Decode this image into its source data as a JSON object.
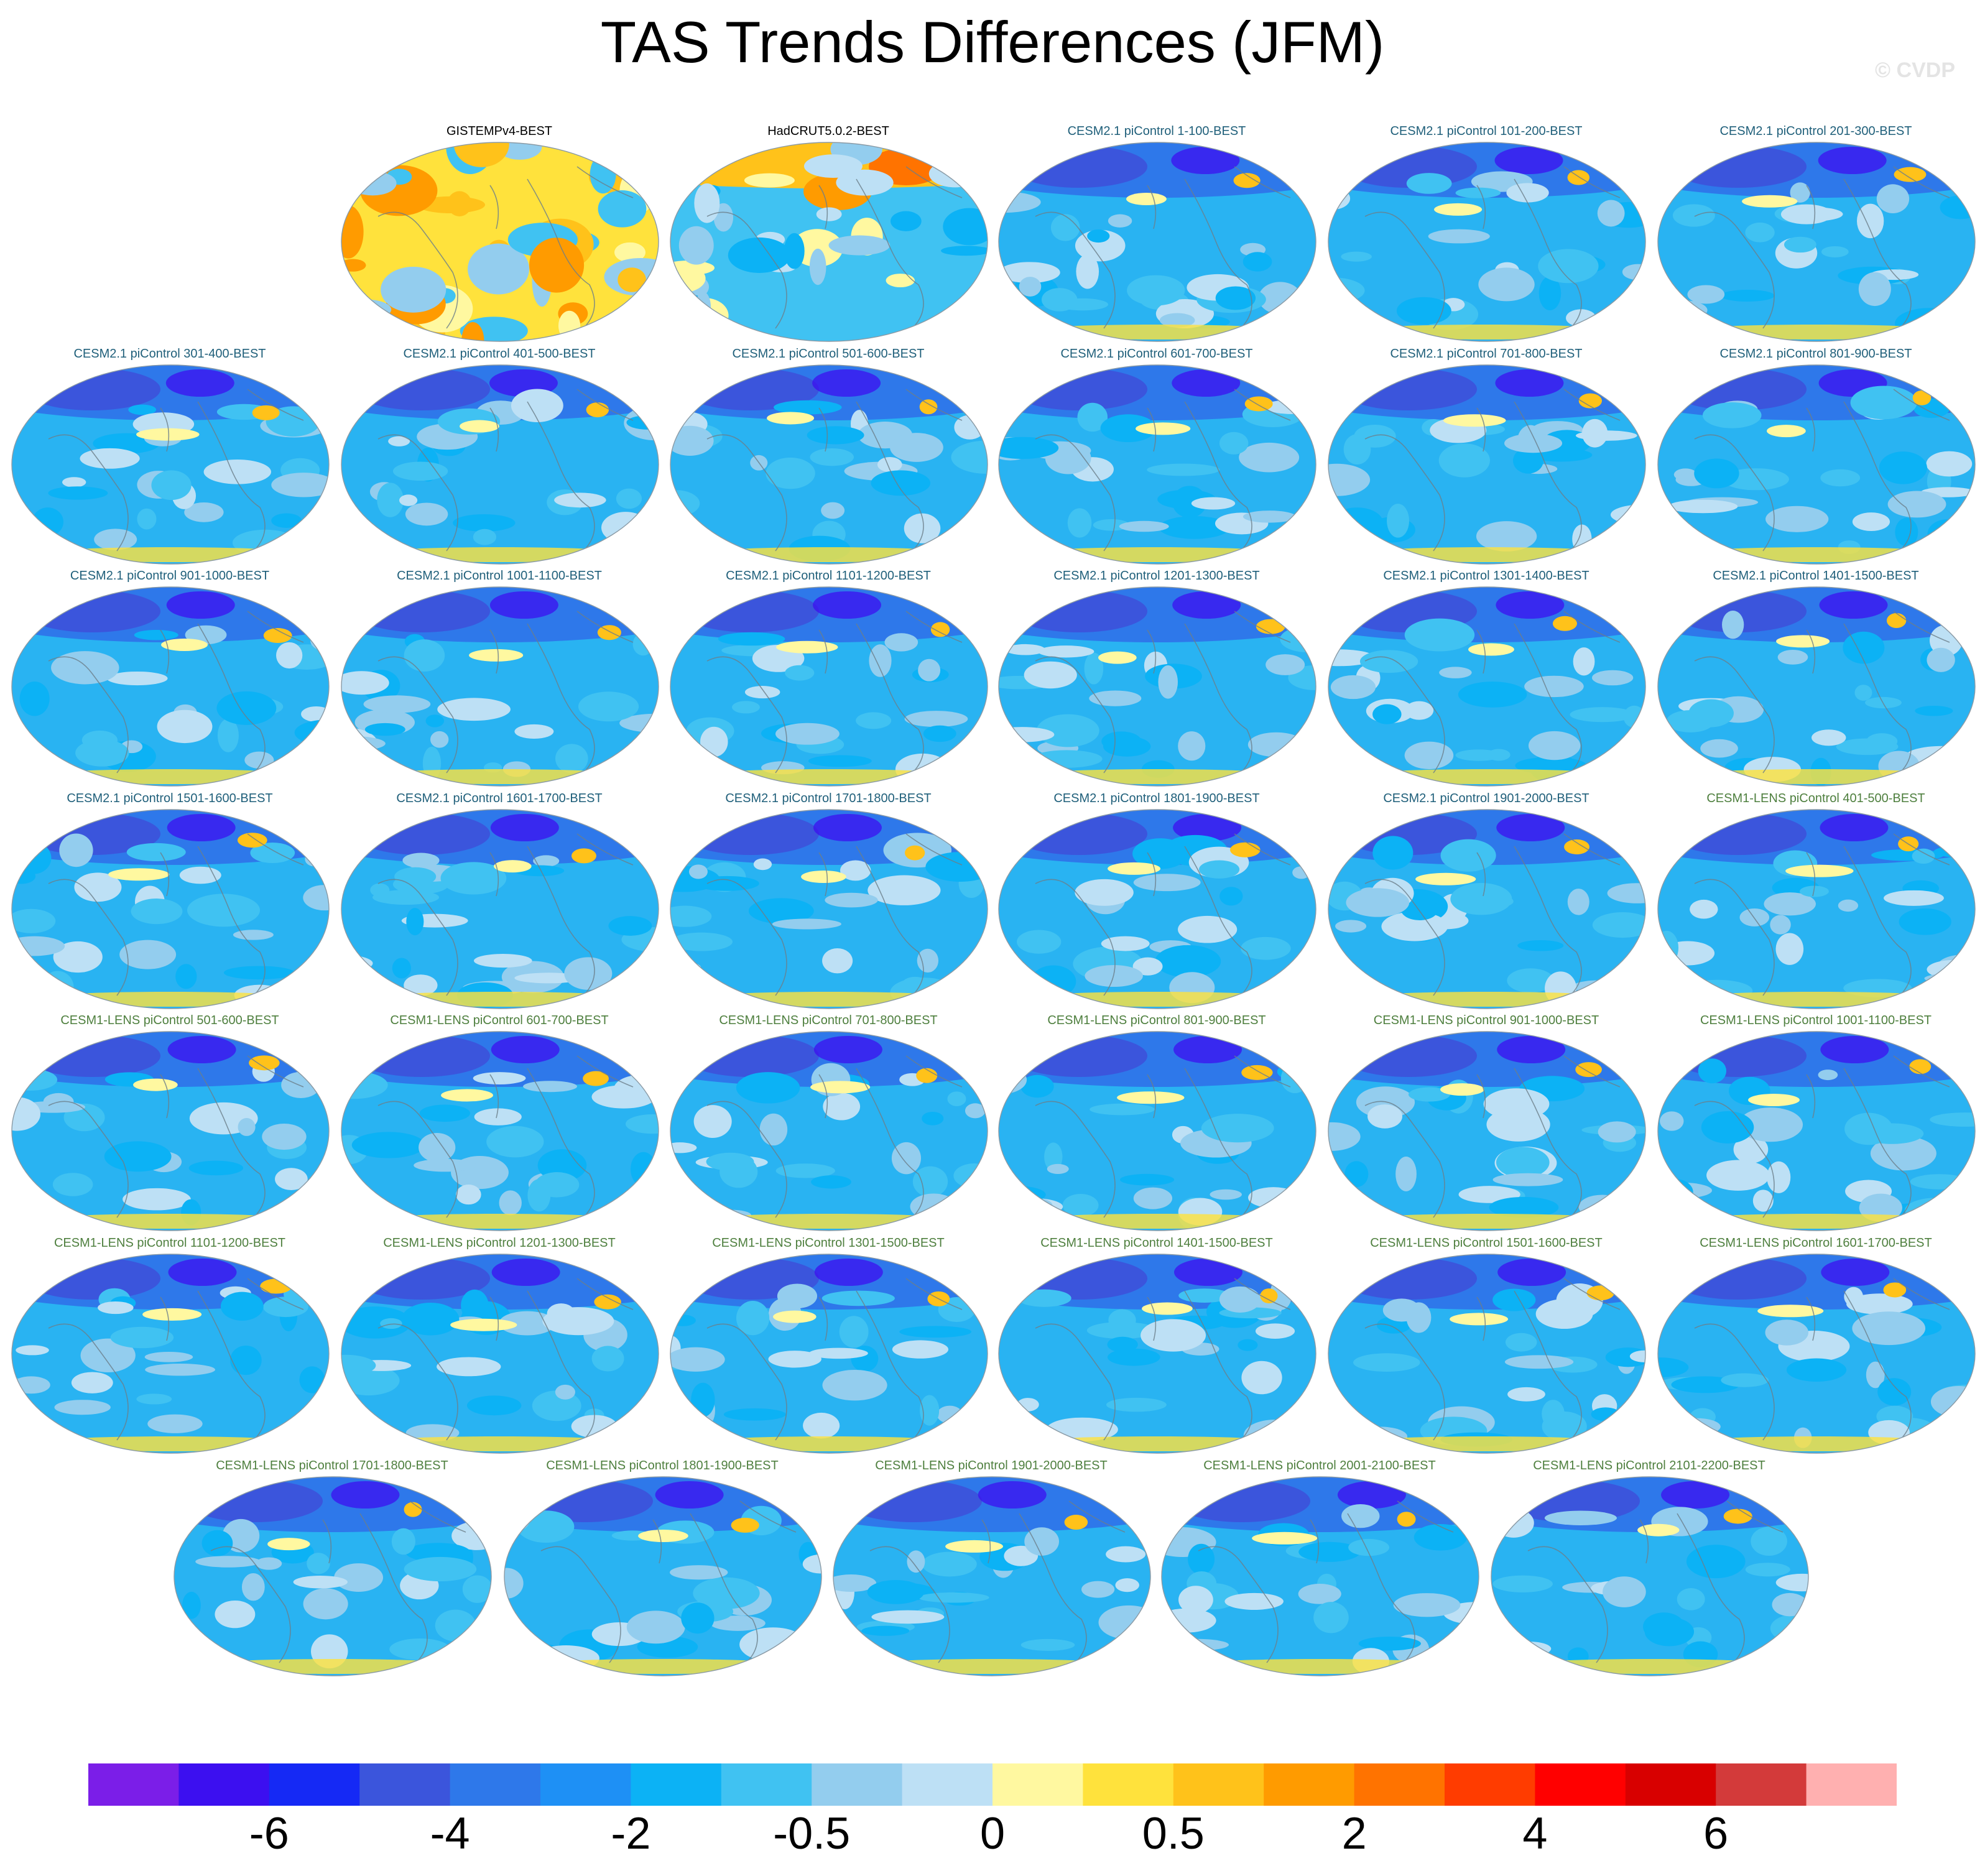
{
  "title": "TAS Trends Differences (JFM)",
  "watermark": "© CVDP",
  "colors": {
    "obs_title": "#000000",
    "cesm2_title": "#1f5f7a",
    "lens_title": "#4e7f3e",
    "ocean": "#29b3f2",
    "land_outline": "#6b7e8a"
  },
  "panels": [
    {
      "title": "GISTEMPv4-BEST",
      "group": "obs",
      "style": "warm"
    },
    {
      "title": "HadCRUT5.0.2-BEST",
      "group": "obs",
      "style": "mixed"
    },
    {
      "title": "CESM2.1 piControl 1-100-BEST",
      "group": "cesm2",
      "style": "cool"
    },
    {
      "title": "CESM2.1 piControl 101-200-BEST",
      "group": "cesm2",
      "style": "cool"
    },
    {
      "title": "CESM2.1 piControl 201-300-BEST",
      "group": "cesm2",
      "style": "cool"
    },
    {
      "title": "CESM2.1 piControl 301-400-BEST",
      "group": "cesm2",
      "style": "cool"
    },
    {
      "title": "CESM2.1 piControl 401-500-BEST",
      "group": "cesm2",
      "style": "cool"
    },
    {
      "title": "CESM2.1 piControl 501-600-BEST",
      "group": "cesm2",
      "style": "cool"
    },
    {
      "title": "CESM2.1 piControl 601-700-BEST",
      "group": "cesm2",
      "style": "cool"
    },
    {
      "title": "CESM2.1 piControl 701-800-BEST",
      "group": "cesm2",
      "style": "cool"
    },
    {
      "title": "CESM2.1 piControl 801-900-BEST",
      "group": "cesm2",
      "style": "cool"
    },
    {
      "title": "CESM2.1 piControl 901-1000-BEST",
      "group": "cesm2",
      "style": "cool"
    },
    {
      "title": "CESM2.1 piControl 1001-1100-BEST",
      "group": "cesm2",
      "style": "cool"
    },
    {
      "title": "CESM2.1 piControl 1101-1200-BEST",
      "group": "cesm2",
      "style": "cool"
    },
    {
      "title": "CESM2.1 piControl 1201-1300-BEST",
      "group": "cesm2",
      "style": "cool"
    },
    {
      "title": "CESM2.1 piControl 1301-1400-BEST",
      "group": "cesm2",
      "style": "cool"
    },
    {
      "title": "CESM2.1 piControl 1401-1500-BEST",
      "group": "cesm2",
      "style": "cool"
    },
    {
      "title": "CESM2.1 piControl 1501-1600-BEST",
      "group": "cesm2",
      "style": "cool"
    },
    {
      "title": "CESM2.1 piControl 1601-1700-BEST",
      "group": "cesm2",
      "style": "cool"
    },
    {
      "title": "CESM2.1 piControl 1701-1800-BEST",
      "group": "cesm2",
      "style": "cool"
    },
    {
      "title": "CESM2.1 piControl 1801-1900-BEST",
      "group": "cesm2",
      "style": "cool"
    },
    {
      "title": "CESM2.1 piControl 1901-2000-BEST",
      "group": "cesm2",
      "style": "cool"
    },
    {
      "title": "CESM1-LENS piControl 401-500-BEST",
      "group": "lens",
      "style": "cool"
    },
    {
      "title": "CESM1-LENS piControl 501-600-BEST",
      "group": "lens",
      "style": "cool"
    },
    {
      "title": "CESM1-LENS piControl 601-700-BEST",
      "group": "lens",
      "style": "cool"
    },
    {
      "title": "CESM1-LENS piControl 701-800-BEST",
      "group": "lens",
      "style": "cool"
    },
    {
      "title": "CESM1-LENS piControl 801-900-BEST",
      "group": "lens",
      "style": "cool"
    },
    {
      "title": "CESM1-LENS piControl 901-1000-BEST",
      "group": "lens",
      "style": "cool"
    },
    {
      "title": "CESM1-LENS piControl 1001-1100-BEST",
      "group": "lens",
      "style": "cool"
    },
    {
      "title": "CESM1-LENS piControl 1101-1200-BEST",
      "group": "lens",
      "style": "cool"
    },
    {
      "title": "CESM1-LENS piControl 1201-1300-BEST",
      "group": "lens",
      "style": "cool"
    },
    {
      "title": "CESM1-LENS piControl 1301-1500-BEST",
      "group": "lens",
      "style": "cool"
    },
    {
      "title": "CESM1-LENS piControl 1401-1500-BEST",
      "group": "lens",
      "style": "cool"
    },
    {
      "title": "CESM1-LENS piControl 1501-1600-BEST",
      "group": "lens",
      "style": "cool"
    },
    {
      "title": "CESM1-LENS piControl 1601-1700-BEST",
      "group": "lens",
      "style": "cool"
    },
    {
      "title": "CESM1-LENS piControl 1701-1800-BEST",
      "group": "lens",
      "style": "cool"
    },
    {
      "title": "CESM1-LENS piControl 1801-1900-BEST",
      "group": "lens",
      "style": "cool"
    },
    {
      "title": "CESM1-LENS piControl 1901-2000-BEST",
      "group": "lens",
      "style": "cool"
    },
    {
      "title": "CESM1-LENS piControl 2001-2100-BEST",
      "group": "lens",
      "style": "cool"
    },
    {
      "title": "CESM1-LENS piControl 2101-2200-BEST",
      "group": "lens",
      "style": "cool"
    }
  ],
  "colorbar": {
    "colors": [
      "#7b1ee8",
      "#3c0ff0",
      "#1529f5",
      "#3b55dc",
      "#2e78ea",
      "#1e90f5",
      "#0cb2f5",
      "#40c2f2",
      "#93cdee",
      "#bde0f5",
      "#fff8a0",
      "#ffe23c",
      "#ffc21a",
      "#ff9b00",
      "#ff7300",
      "#ff3c00",
      "#ff0000",
      "#d80000",
      "#d33a3a",
      "#ffb0b0"
    ],
    "labels": [
      "-6",
      "-4",
      "-2",
      "-0.5",
      "0",
      "0.5",
      "2",
      "4",
      "6"
    ]
  }
}
